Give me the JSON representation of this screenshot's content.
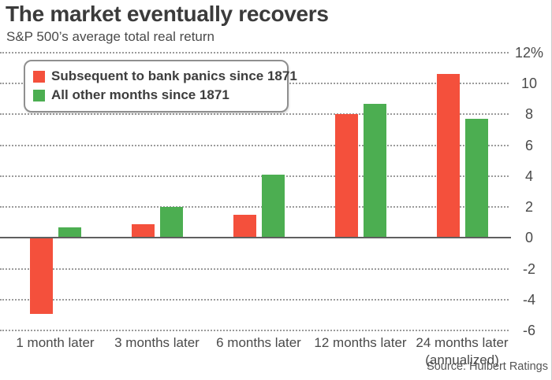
{
  "header": {
    "title": "The market eventually recovers",
    "subtitle": "S&P 500’s average total real return"
  },
  "footer": {
    "source": "Source: Hulbert Ratings"
  },
  "chart_data": {
    "type": "bar",
    "title": "The market eventually recovers",
    "subtitle": "S&P 500’s average total real return",
    "categories": [
      "1 month later",
      "3 months later",
      "6 months later",
      "12 months later",
      "24 months later (annualized)"
    ],
    "series": [
      {
        "name": "Subsequent to bank panics since 1871",
        "color": "#f4503c",
        "values": [
          -4.9,
          0.9,
          1.5,
          8.0,
          10.6
        ]
      },
      {
        "name": "All other months since 1871",
        "color": "#4cae51",
        "values": [
          0.7,
          2.0,
          4.1,
          8.7,
          7.7
        ]
      }
    ],
    "ylabel": "",
    "xlabel": "",
    "ylim": [
      -6,
      12
    ],
    "yticks": [
      12,
      10,
      8,
      6,
      4,
      2,
      0,
      -2,
      -4,
      -6
    ],
    "ytick_labels": [
      "12%",
      "10",
      "8",
      "6",
      "4",
      "2",
      "0",
      "-2",
      "-4",
      "-6"
    ],
    "grid": "horizontal-dotted",
    "legend_position": "top-left",
    "source": "Source: Hulbert Ratings"
  },
  "colors": {
    "panic_red": "#f4503c",
    "other_green": "#4cae51",
    "grid": "#9b9b9b",
    "zero_line": "#5f5f5f",
    "title_text": "#3b3b3b",
    "body_text": "#4a4a4a"
  }
}
